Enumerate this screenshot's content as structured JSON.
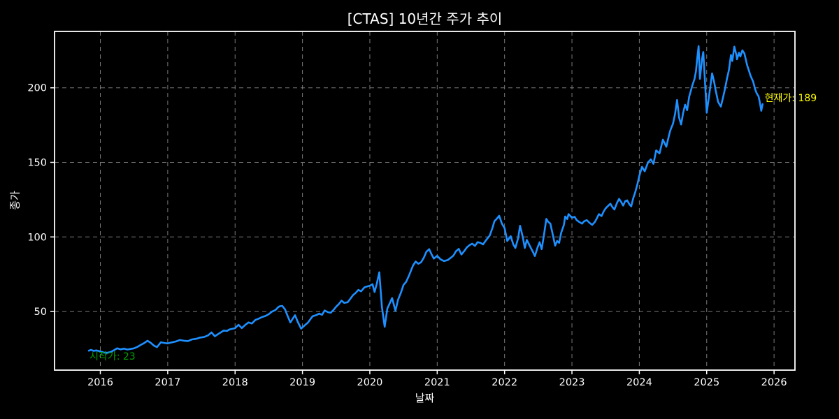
{
  "title": "[CTAS] 10년간 주가 추이",
  "axes": {
    "xlabel": "날짜",
    "ylabel": "종가"
  },
  "annotations": {
    "start": {
      "text": "시작가: 23",
      "value": 23,
      "color": "#00a000",
      "anchor_x": 2015.84,
      "anchor_y": 19.3
    },
    "current": {
      "text": "현재가: 189",
      "value": 189,
      "color": "#ffff00",
      "anchor_x": 2025.85,
      "anchor_y": 192.4
    }
  },
  "colors": {
    "background": "#000000",
    "plot_background": "#000000",
    "spine": "#ffffff",
    "grid": "#7a7a7a",
    "tick_text": "#ffffff",
    "line": "#1e90ff"
  },
  "chart_data": {
    "type": "line",
    "title": "[CTAS] 10년간 주가 추이",
    "xlabel": "날짜",
    "ylabel": "종가",
    "grid": true,
    "legend": false,
    "xlim": [
      2015.32,
      2026.31
    ],
    "ylim": [
      10.7,
      237.8
    ],
    "x_ticks": [
      2016,
      2017,
      2018,
      2019,
      2020,
      2021,
      2022,
      2023,
      2024,
      2025,
      2026
    ],
    "y_ticks": [
      50,
      100,
      150,
      200
    ],
    "series": [
      {
        "name": "종가",
        "color": "#1e90ff",
        "points": [
          [
            2015.83,
            23.7
          ],
          [
            2015.86,
            24.3
          ],
          [
            2015.9,
            23.6
          ],
          [
            2015.94,
            23.9
          ],
          [
            2016.0,
            23.2
          ],
          [
            2016.05,
            22.5
          ],
          [
            2016.1,
            22.3
          ],
          [
            2016.15,
            22.8
          ],
          [
            2016.2,
            24.0
          ],
          [
            2016.25,
            25.3
          ],
          [
            2016.3,
            24.6
          ],
          [
            2016.35,
            25.1
          ],
          [
            2016.4,
            24.5
          ],
          [
            2016.45,
            24.9
          ],
          [
            2016.5,
            25.3
          ],
          [
            2016.55,
            26.3
          ],
          [
            2016.6,
            27.6
          ],
          [
            2016.65,
            28.8
          ],
          [
            2016.7,
            30.4
          ],
          [
            2016.75,
            28.9
          ],
          [
            2016.8,
            27.0
          ],
          [
            2016.84,
            26.1
          ],
          [
            2016.9,
            29.4
          ],
          [
            2016.95,
            28.9
          ],
          [
            2017.0,
            28.6
          ],
          [
            2017.06,
            29.3
          ],
          [
            2017.12,
            29.9
          ],
          [
            2017.18,
            30.9
          ],
          [
            2017.24,
            30.4
          ],
          [
            2017.3,
            30.2
          ],
          [
            2017.36,
            31.3
          ],
          [
            2017.42,
            31.7
          ],
          [
            2017.48,
            32.5
          ],
          [
            2017.54,
            32.9
          ],
          [
            2017.6,
            34.0
          ],
          [
            2017.65,
            36.0
          ],
          [
            2017.7,
            33.4
          ],
          [
            2017.76,
            35.2
          ],
          [
            2017.83,
            37.2
          ],
          [
            2017.88,
            37.0
          ],
          [
            2017.92,
            38.0
          ],
          [
            2018.0,
            38.8
          ],
          [
            2018.05,
            41.1
          ],
          [
            2018.1,
            38.9
          ],
          [
            2018.15,
            41.0
          ],
          [
            2018.2,
            42.7
          ],
          [
            2018.25,
            42.0
          ],
          [
            2018.3,
            44.3
          ],
          [
            2018.35,
            45.2
          ],
          [
            2018.4,
            46.3
          ],
          [
            2018.45,
            47.0
          ],
          [
            2018.5,
            48.2
          ],
          [
            2018.55,
            50.0
          ],
          [
            2018.6,
            51.0
          ],
          [
            2018.63,
            52.5
          ],
          [
            2018.66,
            53.5
          ],
          [
            2018.7,
            53.8
          ],
          [
            2018.74,
            51.5
          ],
          [
            2018.78,
            47.0
          ],
          [
            2018.82,
            42.7
          ],
          [
            2018.86,
            45.5
          ],
          [
            2018.89,
            47.5
          ],
          [
            2018.93,
            43.0
          ],
          [
            2018.98,
            38.5
          ],
          [
            2019.04,
            41.0
          ],
          [
            2019.08,
            42.5
          ],
          [
            2019.12,
            45.0
          ],
          [
            2019.15,
            46.8
          ],
          [
            2019.2,
            47.5
          ],
          [
            2019.25,
            48.6
          ],
          [
            2019.29,
            47.8
          ],
          [
            2019.33,
            50.7
          ],
          [
            2019.38,
            49.5
          ],
          [
            2019.42,
            49.2
          ],
          [
            2019.46,
            51.0
          ],
          [
            2019.5,
            53.2
          ],
          [
            2019.54,
            55.0
          ],
          [
            2019.58,
            57.3
          ],
          [
            2019.62,
            55.8
          ],
          [
            2019.67,
            56.2
          ],
          [
            2019.71,
            58.5
          ],
          [
            2019.75,
            61.0
          ],
          [
            2019.79,
            62.5
          ],
          [
            2019.83,
            64.5
          ],
          [
            2019.87,
            63.5
          ],
          [
            2019.92,
            66.2
          ],
          [
            2019.96,
            66.8
          ],
          [
            2020.0,
            67.3
          ],
          [
            2020.04,
            68.3
          ],
          [
            2020.07,
            63.1
          ],
          [
            2020.1,
            68.0
          ],
          [
            2020.14,
            76.3
          ],
          [
            2020.18,
            52.8
          ],
          [
            2020.22,
            39.8
          ],
          [
            2020.26,
            52.0
          ],
          [
            2020.3,
            56.0
          ],
          [
            2020.33,
            59.0
          ],
          [
            2020.38,
            50.5
          ],
          [
            2020.42,
            58.0
          ],
          [
            2020.46,
            62.5
          ],
          [
            2020.5,
            67.8
          ],
          [
            2020.54,
            70.0
          ],
          [
            2020.58,
            74.0
          ],
          [
            2020.64,
            80.7
          ],
          [
            2020.68,
            83.5
          ],
          [
            2020.72,
            82.0
          ],
          [
            2020.76,
            83.0
          ],
          [
            2020.8,
            86.0
          ],
          [
            2020.84,
            90.1
          ],
          [
            2020.88,
            91.8
          ],
          [
            2020.92,
            88.0
          ],
          [
            2020.95,
            85.5
          ],
          [
            2021.0,
            87.3
          ],
          [
            2021.05,
            85.0
          ],
          [
            2021.1,
            83.8
          ],
          [
            2021.16,
            84.6
          ],
          [
            2021.2,
            86.0
          ],
          [
            2021.24,
            87.5
          ],
          [
            2021.28,
            90.5
          ],
          [
            2021.32,
            92.0
          ],
          [
            2021.36,
            88.2
          ],
          [
            2021.4,
            90.5
          ],
          [
            2021.44,
            93.0
          ],
          [
            2021.48,
            94.5
          ],
          [
            2021.52,
            95.5
          ],
          [
            2021.56,
            94.0
          ],
          [
            2021.6,
            96.5
          ],
          [
            2021.64,
            96.0
          ],
          [
            2021.68,
            95.0
          ],
          [
            2021.72,
            97.5
          ],
          [
            2021.78,
            101.0
          ],
          [
            2021.82,
            106.0
          ],
          [
            2021.85,
            110.6
          ],
          [
            2021.88,
            112.0
          ],
          [
            2021.92,
            114.2
          ],
          [
            2021.96,
            109.0
          ],
          [
            2022.0,
            105.9
          ],
          [
            2022.04,
            97.3
          ],
          [
            2022.09,
            100.5
          ],
          [
            2022.13,
            95.0
          ],
          [
            2022.16,
            92.6
          ],
          [
            2022.2,
            99.0
          ],
          [
            2022.23,
            107.5
          ],
          [
            2022.27,
            100.0
          ],
          [
            2022.3,
            92.6
          ],
          [
            2022.33,
            98.0
          ],
          [
            2022.38,
            93.5
          ],
          [
            2022.42,
            90.0
          ],
          [
            2022.45,
            87.2
          ],
          [
            2022.49,
            93.0
          ],
          [
            2022.52,
            96.5
          ],
          [
            2022.55,
            91.8
          ],
          [
            2022.58,
            100.0
          ],
          [
            2022.62,
            112.1
          ],
          [
            2022.65,
            110.0
          ],
          [
            2022.68,
            108.9
          ],
          [
            2022.72,
            100.5
          ],
          [
            2022.75,
            94.2
          ],
          [
            2022.78,
            97.3
          ],
          [
            2022.81,
            96.0
          ],
          [
            2022.84,
            102.7
          ],
          [
            2022.88,
            108.0
          ],
          [
            2022.9,
            113.7
          ],
          [
            2022.93,
            112.0
          ],
          [
            2022.95,
            115.3
          ],
          [
            2023.0,
            112.9
          ],
          [
            2023.04,
            113.5
          ],
          [
            2023.07,
            111.3
          ],
          [
            2023.11,
            110.0
          ],
          [
            2023.15,
            108.9
          ],
          [
            2023.18,
            110.5
          ],
          [
            2023.22,
            111.3
          ],
          [
            2023.26,
            109.5
          ],
          [
            2023.3,
            108.1
          ],
          [
            2023.34,
            110.0
          ],
          [
            2023.37,
            112.5
          ],
          [
            2023.4,
            115.3
          ],
          [
            2023.44,
            114.0
          ],
          [
            2023.47,
            117.0
          ],
          [
            2023.5,
            119.2
          ],
          [
            2023.54,
            121.0
          ],
          [
            2023.57,
            122.3
          ],
          [
            2023.6,
            120.0
          ],
          [
            2023.63,
            118.4
          ],
          [
            2023.67,
            123.0
          ],
          [
            2023.7,
            125.5
          ],
          [
            2023.73,
            123.5
          ],
          [
            2023.76,
            121.0
          ],
          [
            2023.79,
            124.0
          ],
          [
            2023.82,
            124.5
          ],
          [
            2023.85,
            122.0
          ],
          [
            2023.88,
            120.5
          ],
          [
            2023.91,
            126.0
          ],
          [
            2023.94,
            130.0
          ],
          [
            2023.97,
            135.0
          ],
          [
            2024.0,
            141.0
          ],
          [
            2024.04,
            147.0
          ],
          [
            2024.08,
            144.0
          ],
          [
            2024.13,
            150.0
          ],
          [
            2024.17,
            152.0
          ],
          [
            2024.21,
            149.0
          ],
          [
            2024.25,
            158.0
          ],
          [
            2024.3,
            156.0
          ],
          [
            2024.35,
            165.2
          ],
          [
            2024.4,
            160.5
          ],
          [
            2024.44,
            168.0
          ],
          [
            2024.46,
            171.4
          ],
          [
            2024.5,
            176.0
          ],
          [
            2024.53,
            182.4
          ],
          [
            2024.56,
            191.8
          ],
          [
            2024.59,
            180.0
          ],
          [
            2024.62,
            175.4
          ],
          [
            2024.65,
            183.0
          ],
          [
            2024.68,
            188.7
          ],
          [
            2024.71,
            185.0
          ],
          [
            2024.74,
            194.0
          ],
          [
            2024.79,
            202.0
          ],
          [
            2024.82,
            206.0
          ],
          [
            2024.84,
            211.0
          ],
          [
            2024.86,
            220.0
          ],
          [
            2024.88,
            227.9
          ],
          [
            2024.9,
            206.0
          ],
          [
            2024.93,
            219.0
          ],
          [
            2024.95,
            224.0
          ],
          [
            2024.98,
            200.0
          ],
          [
            2025.0,
            183.3
          ],
          [
            2025.04,
            196.0
          ],
          [
            2025.08,
            209.7
          ],
          [
            2025.11,
            204.0
          ],
          [
            2025.13,
            199.0
          ],
          [
            2025.17,
            190.5
          ],
          [
            2025.21,
            187.4
          ],
          [
            2025.24,
            193.0
          ],
          [
            2025.27,
            199.0
          ],
          [
            2025.3,
            206.0
          ],
          [
            2025.33,
            212.0
          ],
          [
            2025.36,
            222.0
          ],
          [
            2025.38,
            218.0
          ],
          [
            2025.41,
            227.6
          ],
          [
            2025.44,
            222.0
          ],
          [
            2025.45,
            219.1
          ],
          [
            2025.48,
            223.5
          ],
          [
            2025.5,
            221.0
          ],
          [
            2025.53,
            225.1
          ],
          [
            2025.56,
            223.0
          ],
          [
            2025.6,
            215.2
          ],
          [
            2025.63,
            211.0
          ],
          [
            2025.65,
            208.2
          ],
          [
            2025.69,
            204.0
          ],
          [
            2025.72,
            199.0
          ],
          [
            2025.74,
            196.5
          ],
          [
            2025.77,
            194.2
          ],
          [
            2025.79,
            190.0
          ],
          [
            2025.81,
            184.6
          ],
          [
            2025.83,
            189.0
          ]
        ]
      }
    ]
  }
}
